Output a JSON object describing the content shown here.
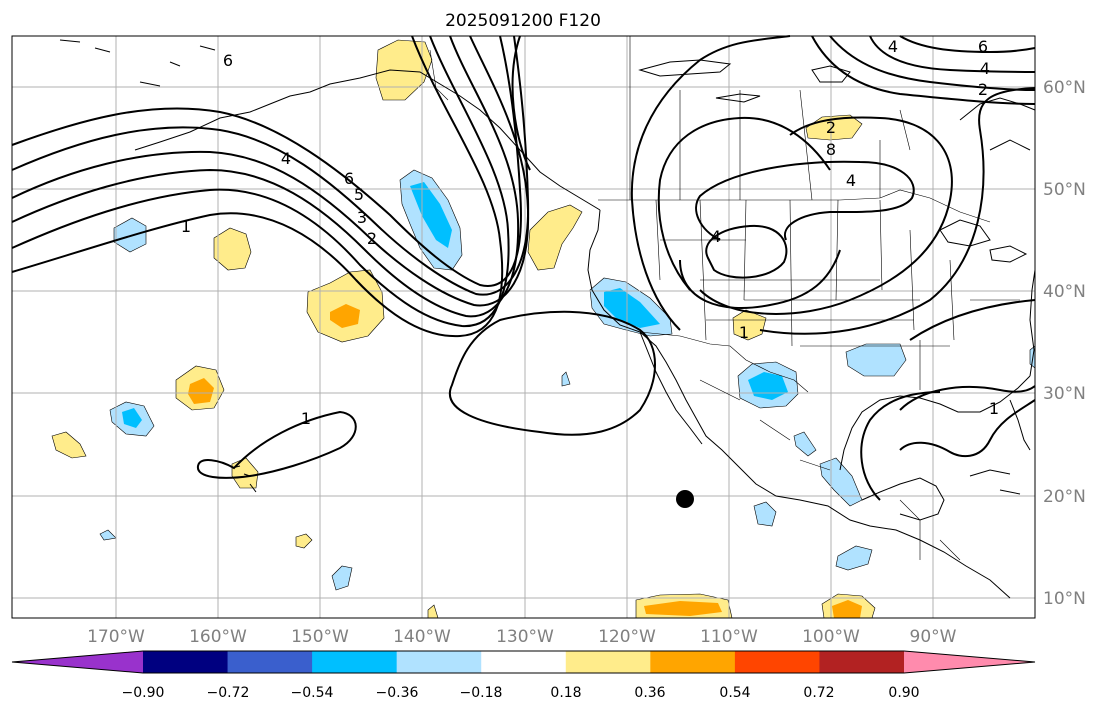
{
  "chart_data": {
    "type": "map",
    "title": "2025091200 F120",
    "longitude_labels": [
      "170°W",
      "160°W",
      "150°W",
      "140°W",
      "130°W",
      "120°W",
      "110°W",
      "100°W",
      "90°W"
    ],
    "latitude_labels": [
      "60°N",
      "50°N",
      "40°N",
      "30°N",
      "20°N",
      "10°N"
    ],
    "contour_labels": [
      "6",
      "4",
      "2",
      "6",
      "4",
      "1",
      "6",
      "5",
      "3",
      "2",
      "4",
      "4",
      "2",
      "8",
      "4",
      "1",
      "1",
      "1"
    ],
    "colorbar": {
      "ticks": [
        "−0.90",
        "−0.72",
        "−0.54",
        "−0.36",
        "−0.18",
        "0.18",
        "0.36",
        "0.54",
        "0.72",
        "0.90"
      ],
      "colors": [
        "#9932cc",
        "#000080",
        "#3a5fcd",
        "#00bfff",
        "#b0e2ff",
        "#ffffff",
        "#ffec8b",
        "#ffa500",
        "#ff4500",
        "#b22222",
        "#ff8bad"
      ]
    },
    "shading_colors": {
      "light_blue": "#b0e2ff",
      "blue": "#00bfff",
      "yellow": "#ffec8b",
      "orange": "#ffa500"
    }
  }
}
